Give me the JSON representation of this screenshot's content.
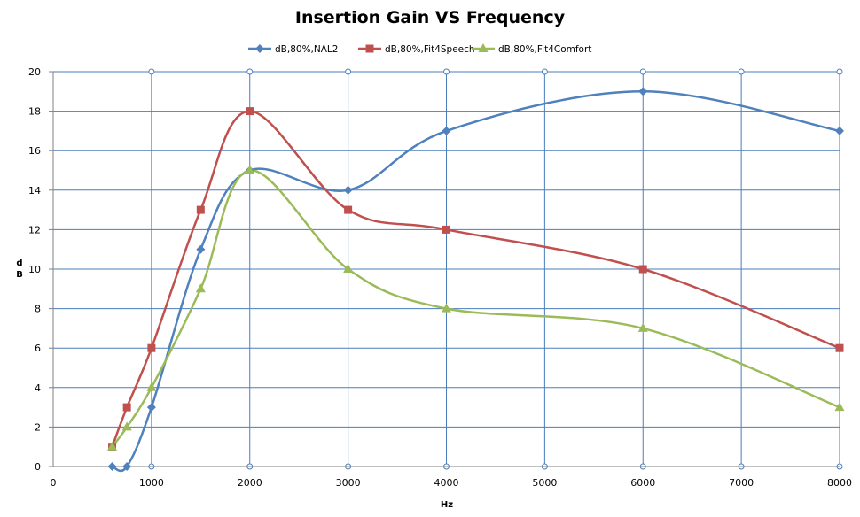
{
  "chart_data": {
    "type": "line",
    "title": "Insertion Gain VS Frequency",
    "xlabel": "Hz",
    "ylabel": "dB",
    "xlim": [
      0,
      8000
    ],
    "ylim": [
      0,
      20
    ],
    "xticks": [
      0,
      1000,
      2000,
      3000,
      4000,
      5000,
      6000,
      7000,
      8000
    ],
    "yticks": [
      0,
      2,
      4,
      6,
      8,
      10,
      12,
      14,
      16,
      18,
      20
    ],
    "grid": true,
    "smooth": true,
    "legend_position": "top",
    "series": [
      {
        "name": "dB,80%,NAL2",
        "color": "#4f81bd",
        "marker": "diamond",
        "x": [
          600,
          750,
          1000,
          1500,
          2000,
          3000,
          4000,
          6000,
          8000
        ],
        "y": [
          0,
          0,
          3,
          11,
          15,
          14,
          17,
          19,
          17
        ]
      },
      {
        "name": "dB,80%,Fit4Speech",
        "color": "#c0504d",
        "marker": "square",
        "x": [
          600,
          750,
          1000,
          1500,
          2000,
          3000,
          4000,
          6000,
          8000
        ],
        "y": [
          1,
          3,
          6,
          13,
          18,
          13,
          12,
          10,
          6
        ]
      },
      {
        "name": "dB,80%,Fit4Comfort",
        "color": "#9bbb59",
        "marker": "triangle",
        "x": [
          600,
          750,
          1000,
          1500,
          2000,
          3000,
          4000,
          6000,
          8000
        ],
        "y": [
          1,
          2,
          4,
          9,
          15,
          10,
          8,
          7,
          3
        ]
      }
    ]
  }
}
